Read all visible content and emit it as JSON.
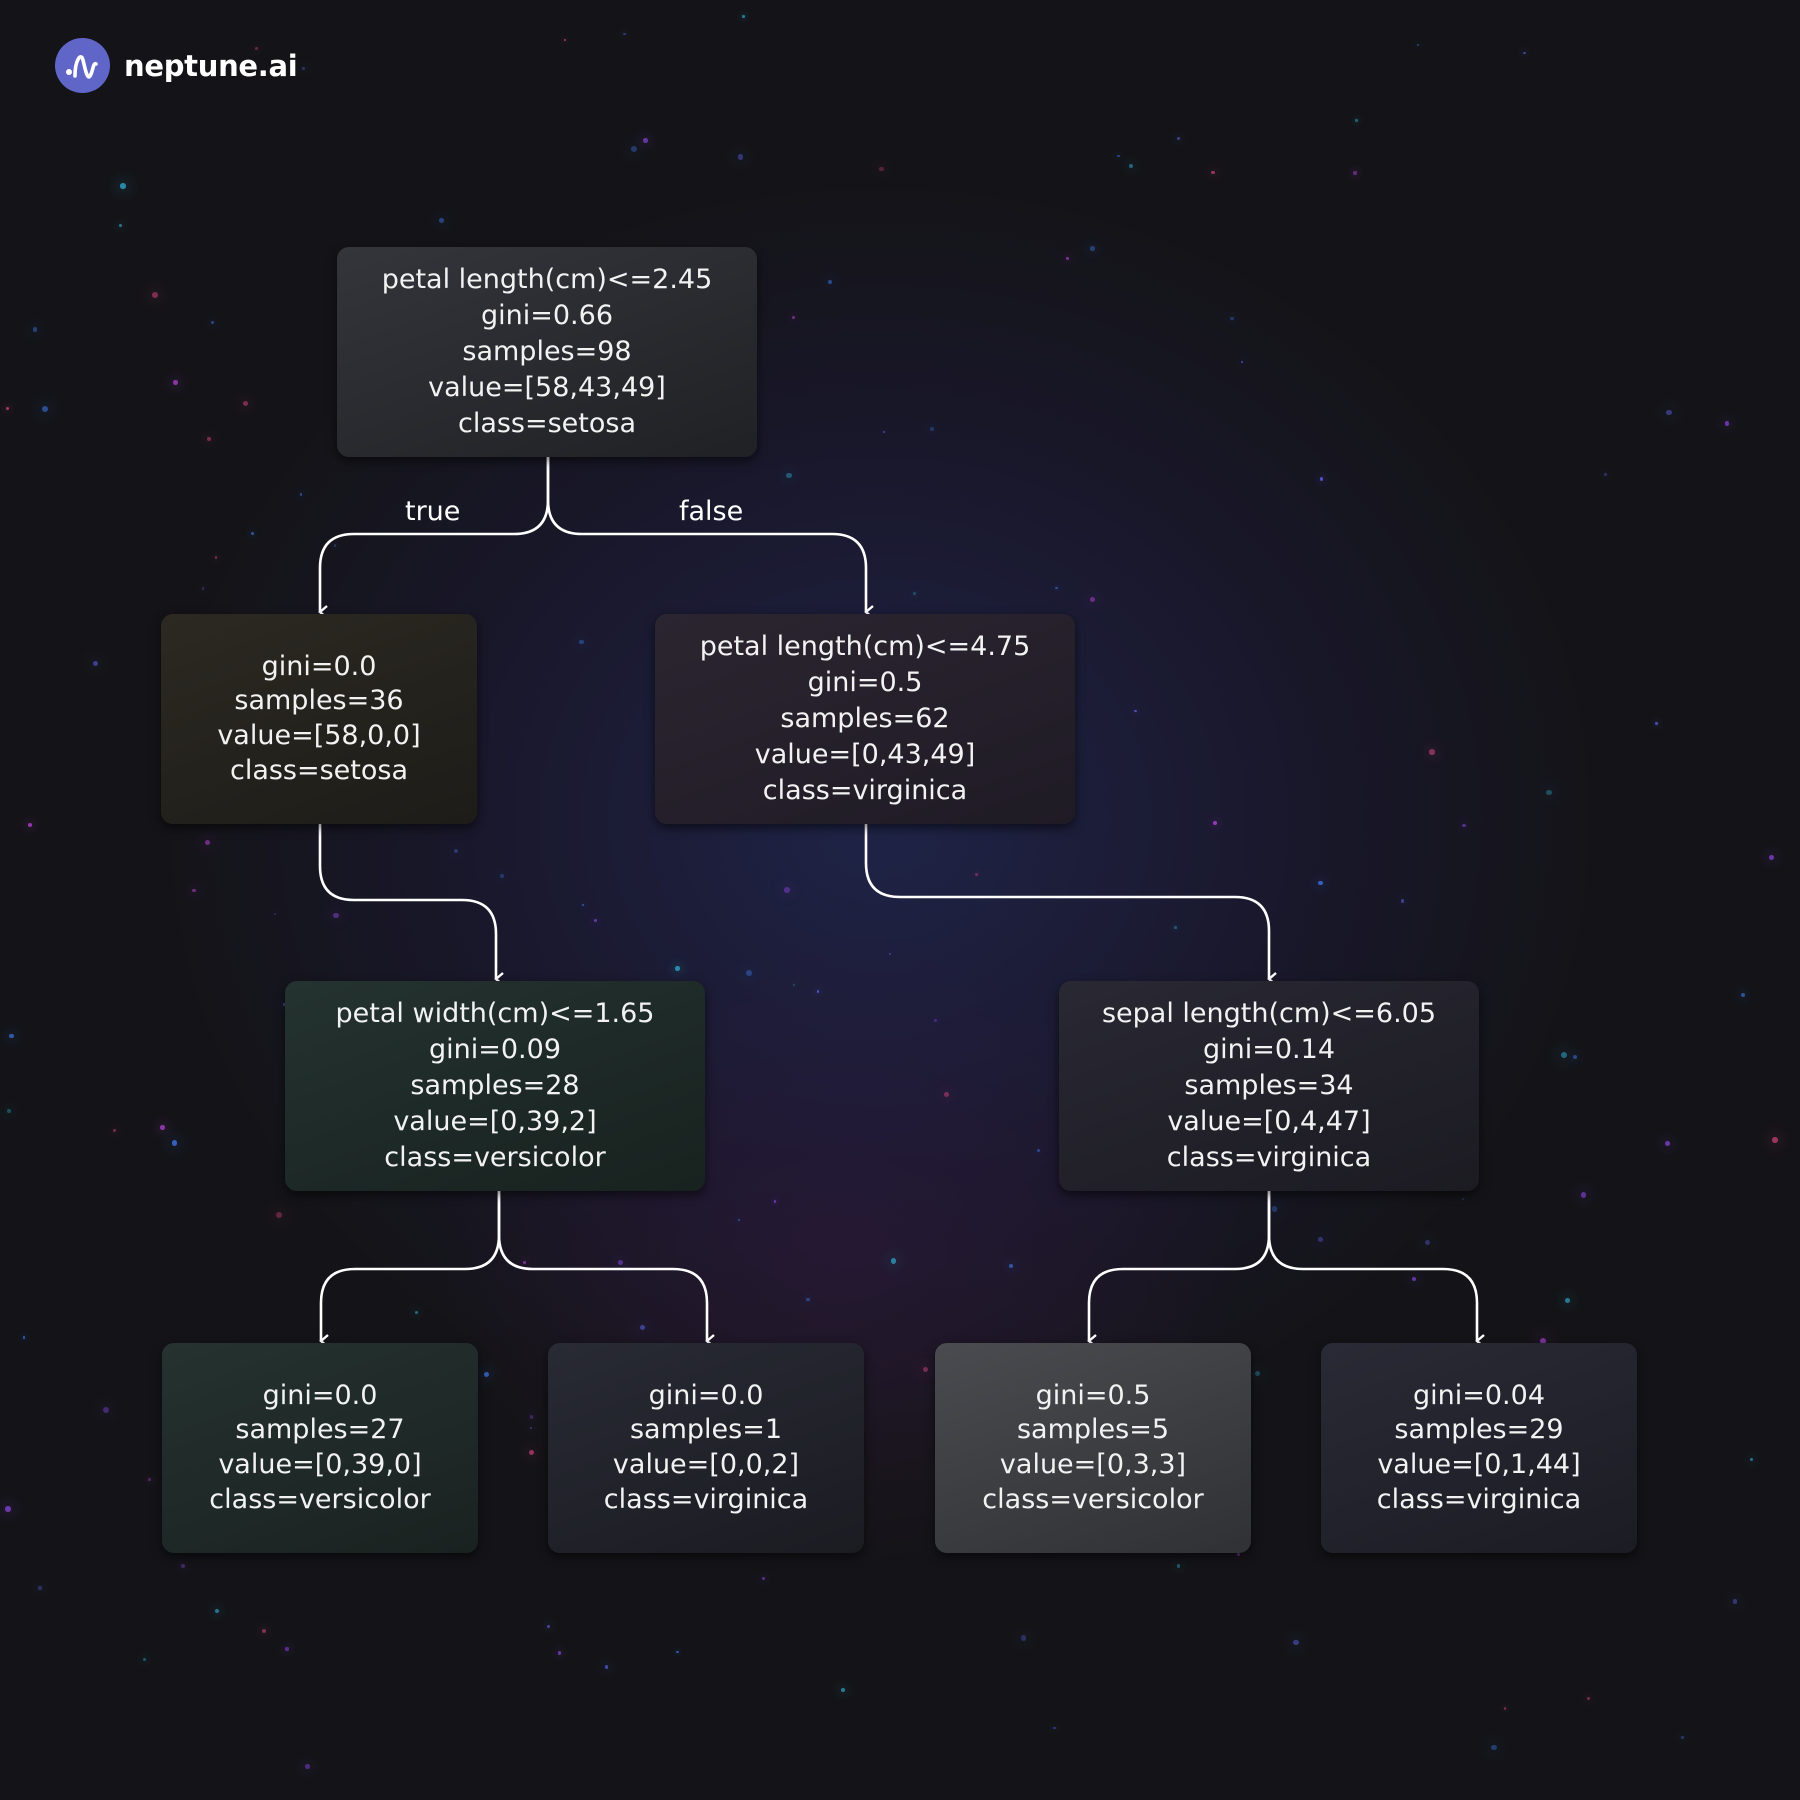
{
  "brand": {
    "name": "neptune.ai",
    "icon": "neptune-wave-logo-icon"
  },
  "edge_labels": {
    "true_label": "true",
    "false_label": "false"
  },
  "tree": {
    "root": {
      "split": "petal length(cm)<=2.45",
      "gini": "gini=0.66",
      "samples": "samples=98",
      "value": "value=[58,43,49]",
      "class": "class=setosa"
    },
    "left_leaf": {
      "gini": "gini=0.0",
      "samples": "samples=36",
      "value": "value=[58,0,0]",
      "class": "class=setosa"
    },
    "right_split": {
      "split": "petal length(cm)<=4.75",
      "gini": "gini=0.5",
      "samples": "samples=62",
      "value": "value=[0,43,49]",
      "class": "class=virginica"
    },
    "petal_width_split": {
      "split": "petal width(cm)<=1.65",
      "gini": "gini=0.09",
      "samples": "samples=28",
      "value": "value=[0,39,2]",
      "class": "class=versicolor"
    },
    "sepal_length_split": {
      "split": "sepal length(cm)<=6.05",
      "gini": "gini=0.14",
      "samples": "samples=34",
      "value": "value=[0,4,47]",
      "class": "class=virginica"
    },
    "leaf_pw_left": {
      "gini": "gini=0.0",
      "samples": "samples=27",
      "value": "value=[0,39,0]",
      "class": "class=versicolor"
    },
    "leaf_pw_right": {
      "gini": "gini=0.0",
      "samples": "samples=1",
      "value": "value=[0,0,2]",
      "class": "class=virginica"
    },
    "leaf_sl_left": {
      "gini": "gini=0.5",
      "samples": "samples=5",
      "value": "value=[0,3,3]",
      "class": "class=versicolor"
    },
    "leaf_sl_right": {
      "gini": "gini=0.04",
      "samples": "samples=29",
      "value": "value=[0,1,44]",
      "class": "class=virginica"
    }
  }
}
